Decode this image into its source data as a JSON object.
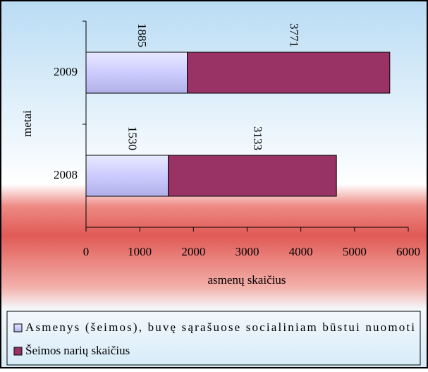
{
  "chart_data": {
    "type": "stacked-bar-horizontal",
    "categories": [
      "2009",
      "2008"
    ],
    "series": [
      {
        "name": "Asmenys (šeimos), buvę sąrašuose socialiniam būstui nuomoti",
        "color": "#ccccff",
        "values": [
          1885,
          1530
        ]
      },
      {
        "name": "Šeimos narių skaičius",
        "color": "#993366",
        "values": [
          3771,
          3133
        ]
      }
    ],
    "xlabel": "asmenų skaičius",
    "ylabel": "metai",
    "xlim": [
      0,
      6000
    ],
    "xticks": [
      0,
      1000,
      2000,
      3000,
      4000,
      5000,
      6000
    ],
    "legend": "bottom"
  }
}
